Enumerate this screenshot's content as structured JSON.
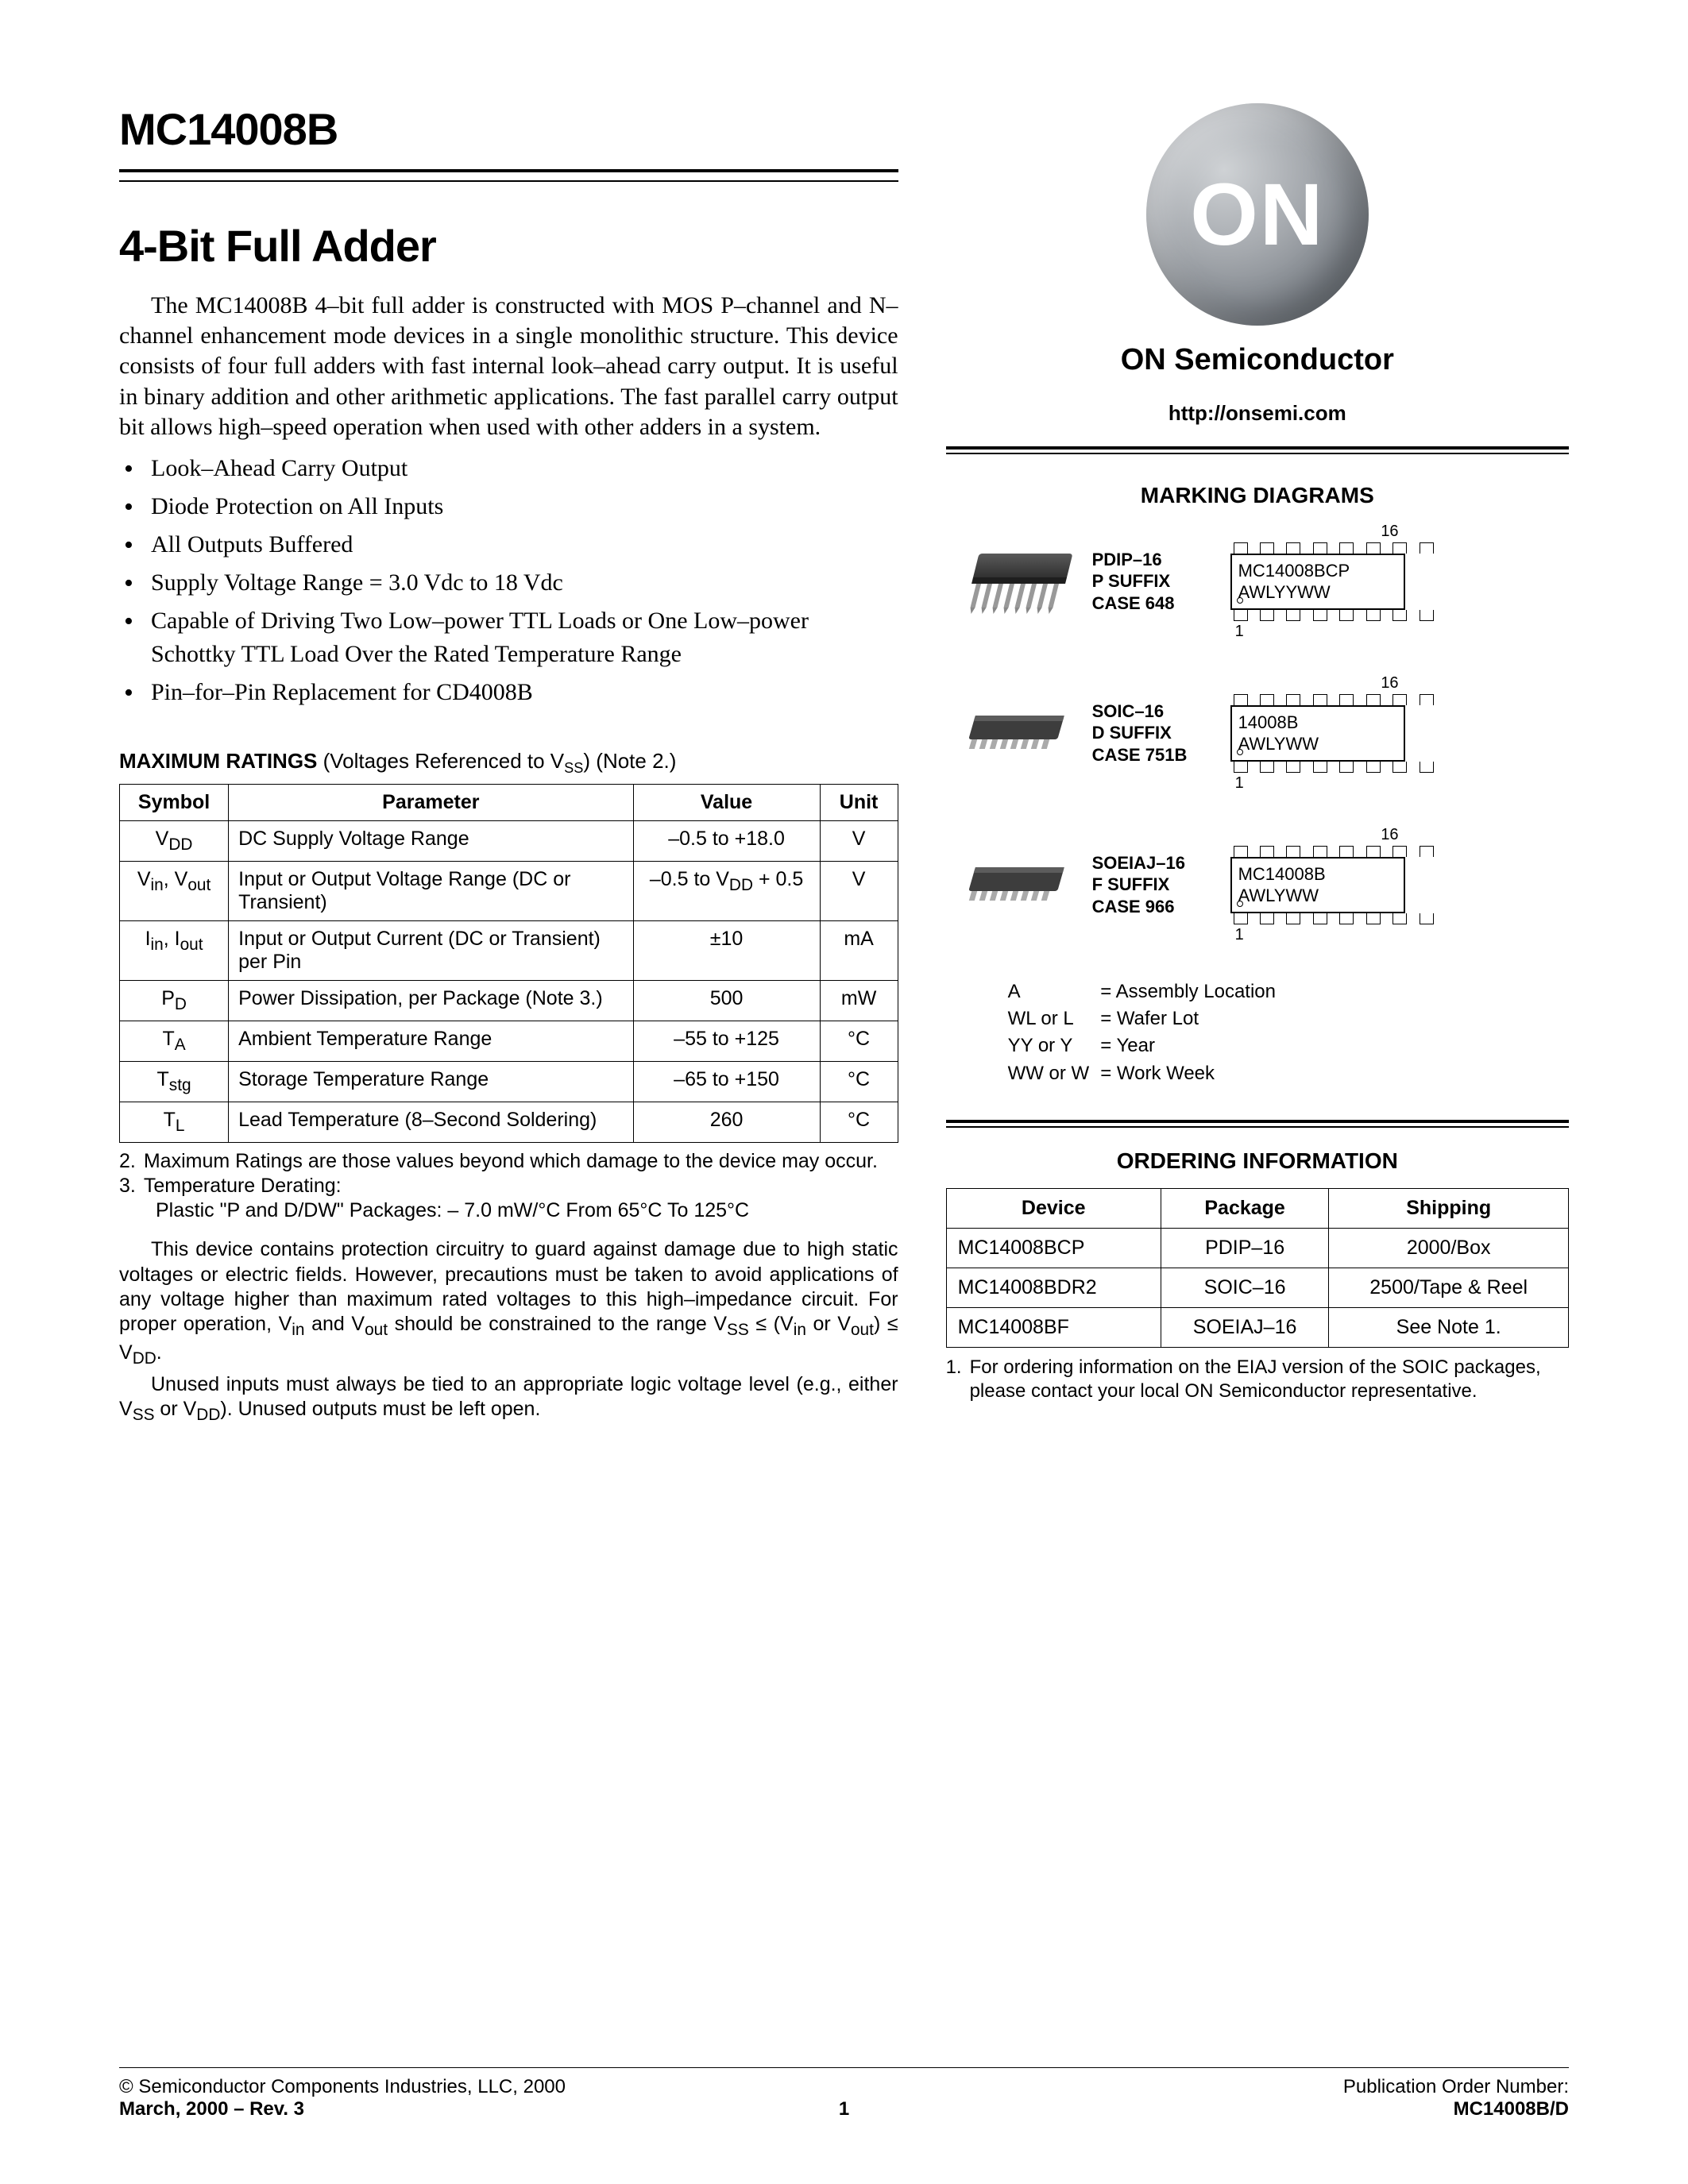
{
  "part_number": "MC14008B",
  "title": "4-Bit Full Adder",
  "intro": "The MC14008B 4–bit full adder is constructed with MOS P–channel and N–channel enhancement mode devices in a single monolithic structure. This device consists of four full adders with fast internal look–ahead carry output. It is useful in binary addition and other arithmetic applications. The fast parallel carry output bit allows high–speed operation when used with other adders in a system.",
  "features": [
    "Look–Ahead Carry Output",
    "Diode Protection on All Inputs",
    "All Outputs Buffered",
    "Supply Voltage Range = 3.0 Vdc to 18 Vdc",
    "Capable of Driving Two Low–power TTL Loads or One Low–power Schottky TTL Load Over the Rated Temperature Range",
    "Pin–for–Pin Replacement for CD4008B"
  ],
  "ratings_heading_bold": "MAXIMUM RATINGS",
  "ratings_heading_rest": " (Voltages Referenced to V",
  "ratings_heading_sub": "SS",
  "ratings_heading_tail": ") (Note 2.)",
  "ratings_cols": [
    "Symbol",
    "Parameter",
    "Value",
    "Unit"
  ],
  "ratings": [
    {
      "sym_html": "V<sub>DD</sub>",
      "param": "DC Supply Voltage Range",
      "val": "–0.5 to +18.0",
      "unit": "V"
    },
    {
      "sym_html": "V<sub>in</sub>, V<sub>out</sub>",
      "param": "Input or Output Voltage Range (DC or Transient)",
      "val_html": "–0.5 to V<sub>DD</sub> + 0.5",
      "unit": "V"
    },
    {
      "sym_html": "I<sub>in</sub>, I<sub>out</sub>",
      "param": "Input or Output Current (DC or Transient) per Pin",
      "val": "±10",
      "unit": "mA"
    },
    {
      "sym_html": "P<sub>D</sub>",
      "param": "Power Dissipation, per Package (Note 3.)",
      "val": "500",
      "unit": "mW"
    },
    {
      "sym_html": "T<sub>A</sub>",
      "param": "Ambient Temperature Range",
      "val": "–55 to +125",
      "unit": "°C"
    },
    {
      "sym_html": "T<sub>stg</sub>",
      "param": "Storage Temperature Range",
      "val": "–65 to +150",
      "unit": "°C"
    },
    {
      "sym_html": "T<sub>L</sub>",
      "param": "Lead Temperature (8–Second Soldering)",
      "val": "260",
      "unit": "°C"
    }
  ],
  "note2_num": "2.",
  "note2": "Maximum Ratings are those values beyond which damage to the device may occur.",
  "note3_num": "3.",
  "note3a": "Temperature Derating:",
  "note3b": "Plastic \"P and D/DW\" Packages: – 7.0 mW/°C From 65°C To 125°C",
  "static1_html": "This device contains protection circuitry to guard against damage due to high static voltages or electric fields. However, precautions must be taken to avoid applications of any voltage higher than maximum rated voltages to this high–impedance circuit. For proper operation, V<sub>in</sub> and V<sub>out</sub> should be constrained to the range V<sub>SS</sub> ≤ (V<sub>in</sub> or V<sub>out</sub>) ≤ V<sub>DD</sub>.",
  "static2_html": "Unused inputs must always be tied to an appropriate logic voltage level (e.g., either V<sub>SS</sub> or V<sub>DD</sub>). Unused outputs must be left open.",
  "brand": "ON Semiconductor",
  "url": "http://onsemi.com",
  "marking_heading": "MARKING DIAGRAMS",
  "packages": [
    {
      "name": "PDIP–16",
      "suffix": "P SUFFIX",
      "case": "CASE 648",
      "mark1": "MC14008BCP",
      "mark2": "AWLYYWW",
      "pin_top": "16",
      "pin_bot": "1",
      "style": "pdip"
    },
    {
      "name": "SOIC–16",
      "suffix": "D SUFFIX",
      "case": "CASE 751B",
      "mark1": "14008B",
      "mark2": "AWLYWW",
      "pin_top": "16",
      "pin_bot": "1",
      "style": "soic"
    },
    {
      "name": "SOEIAJ–16",
      "suffix": "F SUFFIX",
      "case": "CASE 966",
      "mark1": "MC14008B",
      "mark2": "AWLYWW",
      "pin_top": "16",
      "pin_bot": "1",
      "style": "soeiaj"
    }
  ],
  "legend": [
    [
      "A",
      "= Assembly Location"
    ],
    [
      "WL or L",
      "= Wafer Lot"
    ],
    [
      "YY or Y",
      "= Year"
    ],
    [
      "WW or W",
      "= Work Week"
    ]
  ],
  "ordering_heading": "ORDERING INFORMATION",
  "order_cols": [
    "Device",
    "Package",
    "Shipping"
  ],
  "order_rows": [
    [
      "MC14008BCP",
      "PDIP–16",
      "2000/Box"
    ],
    [
      "MC14008BDR2",
      "SOIC–16",
      "2500/Tape & Reel"
    ],
    [
      "MC14008BF",
      "SOEIAJ–16",
      "See Note 1."
    ]
  ],
  "order_note_num": "1.",
  "order_note": "For ordering information on the EIAJ version of the SOIC packages, please contact your local ON Semiconductor representative.",
  "footer": {
    "copyright": "©  Semiconductor Components Industries, LLC, 2000",
    "date_rev": "March, 2000 – Rev. 3",
    "page": "1",
    "pub_label": "Publication Order Number:",
    "pub_num": "MC14008B/D"
  },
  "logo_text": "ON"
}
